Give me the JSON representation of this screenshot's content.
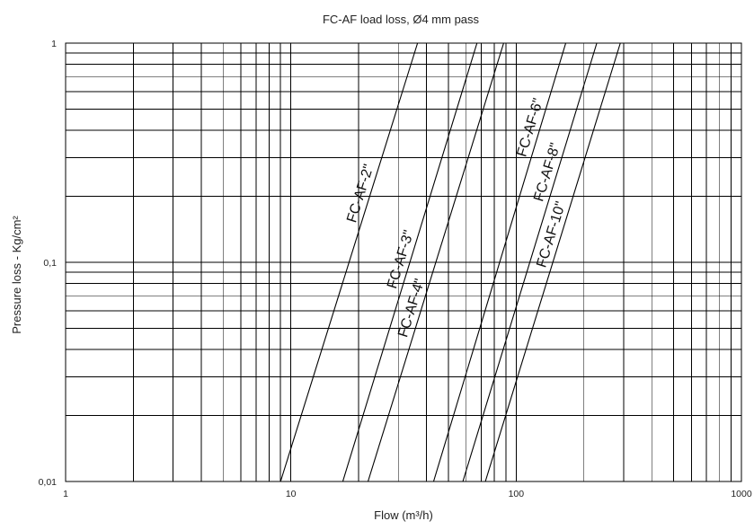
{
  "chart_data": {
    "type": "line",
    "title": "FC-AF load loss, Ø4 mm pass",
    "xlabel": "Flow (m³/h)",
    "ylabel": "Pressure loss - Kg/cm²",
    "xscale": "log",
    "yscale": "log",
    "xlim": [
      1,
      1000
    ],
    "ylim": [
      0.01,
      1
    ],
    "xticks": [
      "1",
      "10",
      "100",
      "1000"
    ],
    "yticks": [
      "0,01",
      "0,1",
      "1"
    ],
    "grid": true,
    "legend": "none",
    "series": [
      {
        "name": "FC-AF-2\"",
        "x": [
          9,
          36.5
        ],
        "y": [
          0.01,
          1
        ]
      },
      {
        "name": "FC-AF-3\"",
        "x": [
          17,
          67
        ],
        "y": [
          0.01,
          1
        ]
      },
      {
        "name": "FC-AF-4\"",
        "x": [
          22,
          88
        ],
        "y": [
          0.01,
          1
        ]
      },
      {
        "name": "FC-AF-6\"",
        "x": [
          43,
          166
        ],
        "y": [
          0.01,
          1
        ]
      },
      {
        "name": "FC-AF-8\"",
        "x": [
          58,
          228
        ],
        "y": [
          0.01,
          1
        ]
      },
      {
        "name": "FC-AF-10\"",
        "x": [
          73,
          290
        ],
        "y": [
          0.01,
          1
        ]
      }
    ]
  }
}
